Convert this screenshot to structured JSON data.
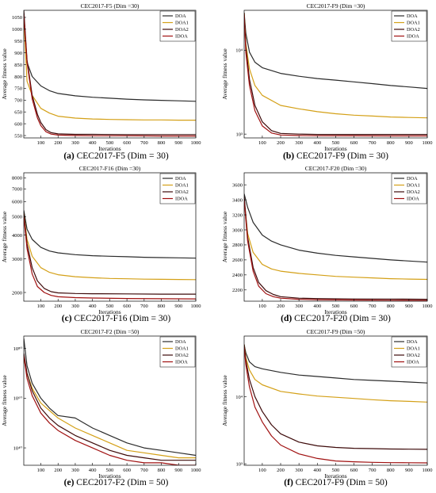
{
  "colors": {
    "DOA": "#2b2b2b",
    "DOA1": "#d4a017",
    "DOA2": "#3d0a0a",
    "IDOA": "#a01010",
    "axis": "#000000",
    "background": "#ffffff"
  },
  "chart_data": [
    {
      "type": "line",
      "title": "CEC2017-F5 (Dim =30)",
      "caption_letter": "(a)",
      "caption_text": " CEC2017-F5 (Dim = 30)",
      "xlabel": "Iterations",
      "ylabel": "Average fitness value",
      "xlim": [
        1,
        1000
      ],
      "ylim": [
        540,
        1080
      ],
      "yscale": "linear",
      "xticks": [
        100,
        200,
        300,
        400,
        500,
        600,
        700,
        800,
        900,
        1000
      ],
      "yticks": [
        550,
        600,
        650,
        700,
        750,
        800,
        850,
        900,
        950,
        1000,
        1050
      ],
      "ytick_labels": [
        "550",
        "600",
        "650",
        "700",
        "750",
        "800",
        "850",
        "900",
        "950",
        "1000",
        "1050"
      ],
      "legend": "top-right",
      "grid": false,
      "series": [
        {
          "name": "DOA",
          "x": [
            1,
            20,
            50,
            100,
            150,
            200,
            300,
            400,
            500,
            600,
            700,
            800,
            900,
            1000
          ],
          "y": [
            1070,
            860,
            800,
            760,
            740,
            728,
            718,
            712,
            708,
            704,
            701,
            699,
            697,
            695
          ]
        },
        {
          "name": "DOA1",
          "x": [
            1,
            20,
            50,
            100,
            150,
            200,
            300,
            400,
            500,
            600,
            700,
            800,
            900,
            1000
          ],
          "y": [
            1050,
            780,
            720,
            665,
            645,
            632,
            624,
            620,
            618,
            617,
            616,
            616,
            615,
            615
          ]
        },
        {
          "name": "DOA2",
          "x": [
            1,
            20,
            50,
            80,
            100,
            130,
            160,
            200,
            300,
            400,
            600,
            800,
            1000
          ],
          "y": [
            1080,
            870,
            720,
            640,
            605,
            575,
            562,
            557,
            555,
            555,
            554,
            554,
            554
          ]
        },
        {
          "name": "IDOA",
          "x": [
            1,
            20,
            50,
            80,
            100,
            130,
            160,
            200,
            300,
            400,
            600,
            800,
            1000
          ],
          "y": [
            1060,
            860,
            705,
            625,
            592,
            566,
            556,
            552,
            550,
            549,
            549,
            548,
            548
          ]
        }
      ]
    },
    {
      "type": "line",
      "title": "CEC2017-F9 (Dim =30)",
      "caption_letter": "(b)",
      "caption_text": " CEC2017-F9 (Dim = 30)",
      "xlabel": "Iterations",
      "ylabel": "Average fitness value",
      "xlim": [
        1,
        1000
      ],
      "ylim": [
        900,
        30000
      ],
      "yscale": "log",
      "xticks": [
        100,
        200,
        300,
        400,
        500,
        600,
        700,
        800,
        900,
        1000
      ],
      "yticks": [
        1000,
        10000
      ],
      "ytick_labels": [
        "10³",
        "10⁴"
      ],
      "legend": "top-right",
      "grid": false,
      "series": [
        {
          "name": "DOA",
          "x": [
            1,
            10,
            30,
            60,
            100,
            200,
            300,
            400,
            500,
            600,
            700,
            800,
            900,
            1000
          ],
          "y": [
            28000,
            16000,
            9500,
            7200,
            6200,
            5300,
            4900,
            4600,
            4400,
            4200,
            4000,
            3800,
            3650,
            3500
          ]
        },
        {
          "name": "DOA1",
          "x": [
            1,
            10,
            30,
            60,
            100,
            200,
            300,
            400,
            500,
            600,
            700,
            800,
            900,
            1000
          ],
          "y": [
            28000,
            12000,
            6000,
            3800,
            2900,
            2200,
            2000,
            1850,
            1750,
            1680,
            1640,
            1600,
            1580,
            1560
          ]
        },
        {
          "name": "DOA2",
          "x": [
            1,
            10,
            30,
            60,
            100,
            150,
            200,
            300,
            400,
            600,
            800,
            1000
          ],
          "y": [
            28000,
            11000,
            4500,
            2200,
            1400,
            1100,
            1020,
            1000,
            990,
            990,
            990,
            990
          ]
        },
        {
          "name": "IDOA",
          "x": [
            1,
            10,
            30,
            60,
            100,
            150,
            200,
            300,
            400,
            600,
            800,
            1000
          ],
          "y": [
            27000,
            9500,
            3800,
            1900,
            1250,
            1030,
            975,
            960,
            955,
            952,
            950,
            950
          ]
        }
      ]
    },
    {
      "type": "line",
      "title": "CEC2017-F16 (Dim =30)",
      "caption_letter": "(c)",
      "caption_text": " CEC2017-F16 (Dim = 30)",
      "xlabel": "Iterations",
      "ylabel": "Average fitness value",
      "xlim": [
        1,
        1000
      ],
      "ylim": [
        1800,
        8500
      ],
      "yscale": "log",
      "xticks": [
        100,
        200,
        300,
        400,
        500,
        600,
        700,
        800,
        900,
        1000
      ],
      "yticks": [
        2000,
        3000,
        4000,
        5000,
        6000,
        7000,
        8000
      ],
      "ytick_labels": [
        "2000",
        "3000",
        "4000",
        "5000",
        "6000",
        "7000",
        "8000"
      ],
      "legend": "top-right",
      "grid": false,
      "series": [
        {
          "name": "DOA",
          "x": [
            1,
            20,
            50,
            100,
            150,
            200,
            300,
            400,
            500,
            600,
            700,
            800,
            900,
            1000
          ],
          "y": [
            5400,
            4300,
            3800,
            3450,
            3300,
            3230,
            3160,
            3120,
            3100,
            3080,
            3060,
            3050,
            3040,
            3030
          ]
        },
        {
          "name": "DOA1",
          "x": [
            1,
            20,
            50,
            100,
            150,
            200,
            300,
            400,
            500,
            600,
            700,
            800,
            900,
            1000
          ],
          "y": [
            5200,
            3800,
            3100,
            2700,
            2550,
            2480,
            2420,
            2390,
            2370,
            2360,
            2350,
            2345,
            2340,
            2335
          ]
        },
        {
          "name": "DOA2",
          "x": [
            1,
            20,
            50,
            80,
            120,
            160,
            200,
            300,
            400,
            600,
            800,
            1000
          ],
          "y": [
            5200,
            3600,
            2700,
            2300,
            2100,
            2020,
            1990,
            1975,
            1970,
            1965,
            1960,
            1960
          ]
        },
        {
          "name": "IDOA",
          "x": [
            1,
            20,
            50,
            80,
            120,
            160,
            200,
            300,
            400,
            600,
            800,
            1000
          ],
          "y": [
            5000,
            3400,
            2500,
            2150,
            2000,
            1930,
            1900,
            1880,
            1870,
            1860,
            1855,
            1850
          ]
        }
      ]
    },
    {
      "type": "line",
      "title": "CEC2017-F20 (Dim =30)",
      "caption_letter": "(d)",
      "caption_text": " CEC2017-F20 (Dim = 30)",
      "xlabel": "Iterations",
      "ylabel": "Average fitness value",
      "xlim": [
        1,
        1000
      ],
      "ylim": [
        2050,
        3760
      ],
      "yscale": "linear",
      "xticks": [
        100,
        200,
        300,
        400,
        500,
        600,
        700,
        800,
        900,
        1000
      ],
      "yticks": [
        2200,
        2400,
        2600,
        2800,
        3000,
        3200,
        3400,
        3600
      ],
      "ytick_labels": [
        "2200",
        "2400",
        "2600",
        "2800",
        "3000",
        "3200",
        "3400",
        "3600"
      ],
      "legend": "top-right",
      "grid": false,
      "series": [
        {
          "name": "DOA",
          "x": [
            1,
            20,
            50,
            100,
            150,
            200,
            300,
            400,
            500,
            600,
            700,
            800,
            900,
            1000
          ],
          "y": [
            3480,
            3300,
            3100,
            2930,
            2850,
            2800,
            2730,
            2690,
            2660,
            2640,
            2620,
            2600,
            2585,
            2570
          ]
        },
        {
          "name": "DOA1",
          "x": [
            1,
            20,
            50,
            100,
            150,
            200,
            300,
            400,
            500,
            600,
            700,
            800,
            900,
            1000
          ],
          "y": [
            3400,
            2950,
            2700,
            2540,
            2480,
            2450,
            2420,
            2400,
            2380,
            2370,
            2360,
            2350,
            2345,
            2340
          ]
        },
        {
          "name": "DOA2",
          "x": [
            1,
            20,
            50,
            80,
            120,
            160,
            200,
            300,
            400,
            600,
            800,
            1000
          ],
          "y": [
            3450,
            2900,
            2500,
            2300,
            2190,
            2140,
            2110,
            2090,
            2085,
            2080,
            2078,
            2075
          ]
        },
        {
          "name": "IDOA",
          "x": [
            1,
            20,
            50,
            80,
            120,
            160,
            200,
            300,
            400,
            600,
            800,
            1000
          ],
          "y": [
            3400,
            2850,
            2450,
            2250,
            2150,
            2110,
            2090,
            2075,
            2070,
            2066,
            2063,
            2060
          ]
        }
      ]
    },
    {
      "type": "line",
      "title": "CEC2017-F2 (Dim =50)",
      "caption_letter": "(e)",
      "caption_text": " CEC2017-F2 (Dim = 50)",
      "xlabel": "Iterations",
      "ylabel": "Average fitness value",
      "xlim": [
        1,
        1000
      ],
      "ylim": [
        1e+33,
        1e+85
      ],
      "yscale": "log",
      "xticks": [
        100,
        200,
        300,
        400,
        500,
        600,
        700,
        800,
        900,
        1000
      ],
      "yticks": [
        1e+40,
        1e+60,
        1e+80
      ],
      "ytick_labels": [
        "10⁴⁰",
        "10⁶⁰",
        "10⁸⁰"
      ],
      "legend": "top-right",
      "grid": false,
      "series": [
        {
          "name": "DOA",
          "x": [
            1,
            20,
            50,
            100,
            150,
            200,
            300,
            400,
            500,
            600,
            700,
            800,
            900,
            1000
          ],
          "y": [
            1e+84,
            1e+73,
            1e+66,
            1e+60,
            1e+56,
            1e+53,
            1e+52,
            1e+48,
            1e+45,
            1e+42,
            1e+40,
            1e+39,
            1e+38,
            1e+37
          ]
        },
        {
          "name": "DOA1",
          "x": [
            1,
            20,
            50,
            100,
            150,
            200,
            300,
            400,
            500,
            600,
            700,
            800,
            900,
            1000
          ],
          "y": [
            1e+76,
            1e+70,
            1e+64,
            1e+58,
            1e+55,
            1e+52,
            1e+48,
            1e+45,
            1e+42,
            1e+39,
            1e+38,
            1e+37,
            1e+36,
            1e+36
          ]
        },
        {
          "name": "DOA2",
          "x": [
            1,
            20,
            50,
            100,
            150,
            200,
            300,
            400,
            500,
            600,
            700,
            800,
            900,
            1000
          ],
          "y": [
            1e+78,
            1e+70,
            1e+63,
            1e+56,
            1e+52,
            1e+49,
            1e+45,
            1e+42,
            1e+39,
            1e+37,
            1e+36,
            1e+35,
            1e+35,
            1e+35
          ]
        },
        {
          "name": "IDOA",
          "x": [
            1,
            20,
            50,
            100,
            150,
            200,
            300,
            400,
            500,
            600,
            700,
            800,
            900,
            1000
          ],
          "y": [
            1e+77,
            1e+68,
            1e+61,
            1e+54,
            1e+50,
            1e+47,
            1e+43,
            1e+40,
            1e+37,
            1e+35,
            1e+34,
            1e+34,
            1e+33,
            1e+33
          ]
        }
      ]
    },
    {
      "type": "line",
      "title": "CEC2017-F9 (Dim =50)",
      "caption_letter": "(f)",
      "caption_text": " CEC2017-F9 (Dim = 50)",
      "xlabel": "Iterations",
      "ylabel": "Average fitness value",
      "xlim": [
        1,
        1000
      ],
      "ylim": [
        950,
        80000
      ],
      "yscale": "log",
      "xticks": [
        100,
        200,
        300,
        400,
        500,
        600,
        700,
        800,
        900,
        1000
      ],
      "yticks": [
        1000,
        10000
      ],
      "ytick_labels": [
        "10³",
        "10⁴"
      ],
      "legend": "top-right",
      "grid": false,
      "series": [
        {
          "name": "DOA",
          "x": [
            1,
            10,
            30,
            60,
            100,
            200,
            300,
            400,
            500,
            600,
            700,
            800,
            900,
            1000
          ],
          "y": [
            60000,
            45000,
            33000,
            28000,
            26000,
            23000,
            21000,
            20000,
            19000,
            18000,
            17500,
            17000,
            16500,
            16000
          ]
        },
        {
          "name": "DOA1",
          "x": [
            1,
            10,
            30,
            60,
            100,
            200,
            300,
            400,
            500,
            600,
            700,
            800,
            900,
            1000
          ],
          "y": [
            60000,
            38000,
            25000,
            18000,
            15000,
            12000,
            11000,
            10200,
            9800,
            9400,
            9000,
            8700,
            8500,
            8300
          ]
        },
        {
          "name": "DOA2",
          "x": [
            1,
            10,
            30,
            60,
            100,
            150,
            200,
            300,
            400,
            500,
            600,
            700,
            800,
            900,
            1000
          ],
          "y": [
            60000,
            35000,
            18000,
            10000,
            6000,
            3800,
            2800,
            2100,
            1850,
            1750,
            1700,
            1680,
            1660,
            1650,
            1640
          ]
        },
        {
          "name": "IDOA",
          "x": [
            1,
            10,
            30,
            60,
            100,
            150,
            200,
            300,
            400,
            500,
            600,
            700,
            800,
            900,
            1000
          ],
          "y": [
            55000,
            30000,
            14000,
            7000,
            4200,
            2600,
            1900,
            1400,
            1200,
            1100,
            1070,
            1050,
            1040,
            1035,
            1030
          ]
        }
      ]
    }
  ]
}
